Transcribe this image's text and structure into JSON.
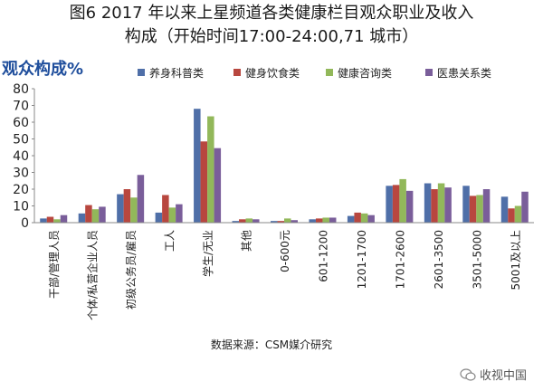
{
  "title_line1": "图6 2017 年以来上星频道各类健康栏目观众职业及收入",
  "title_line2": "构成（开始时间17:00-24:00,71 城市）",
  "watermark": "收视中国",
  "source": "数据来源：CSM媒介研究",
  "chart_data": {
    "type": "bar",
    "ylabel": "观众构成%",
    "ylim": [
      0,
      80
    ],
    "yticks": [
      0,
      10,
      20,
      30,
      40,
      50,
      60,
      70,
      80
    ],
    "legend_position": "top",
    "categories": [
      "干部/管理人员",
      "个体/私营企业人员",
      "初级公务员/雇员",
      "工人",
      "学生/无业",
      "其他",
      "0-600元",
      "601-1200",
      "1201-1700",
      "1701-2600",
      "2601-3500",
      "3501-5000",
      "5001及以上"
    ],
    "series": [
      {
        "name": "养身科普类",
        "color": "#4f6fa8",
        "values": [
          2.5,
          5.5,
          17.0,
          6.0,
          68.0,
          1.0,
          1.0,
          2.0,
          4.0,
          22.0,
          23.5,
          22.0,
          15.5
        ]
      },
      {
        "name": "健身饮食类",
        "color": "#b8473f",
        "values": [
          3.5,
          10.5,
          20.0,
          16.5,
          48.5,
          2.0,
          1.0,
          2.5,
          6.0,
          22.5,
          20.0,
          16.0,
          8.5
        ]
      },
      {
        "name": "健康咨询类",
        "color": "#92b85a",
        "values": [
          2.0,
          8.0,
          15.0,
          9.0,
          63.5,
          2.5,
          2.5,
          3.0,
          5.5,
          26.0,
          23.5,
          16.5,
          10.0
        ]
      },
      {
        "name": "医患关系类",
        "color": "#7a5e9a",
        "values": [
          4.5,
          9.5,
          28.5,
          11.0,
          44.5,
          2.0,
          1.5,
          3.0,
          4.5,
          19.0,
          21.0,
          20.0,
          18.5
        ]
      }
    ]
  }
}
